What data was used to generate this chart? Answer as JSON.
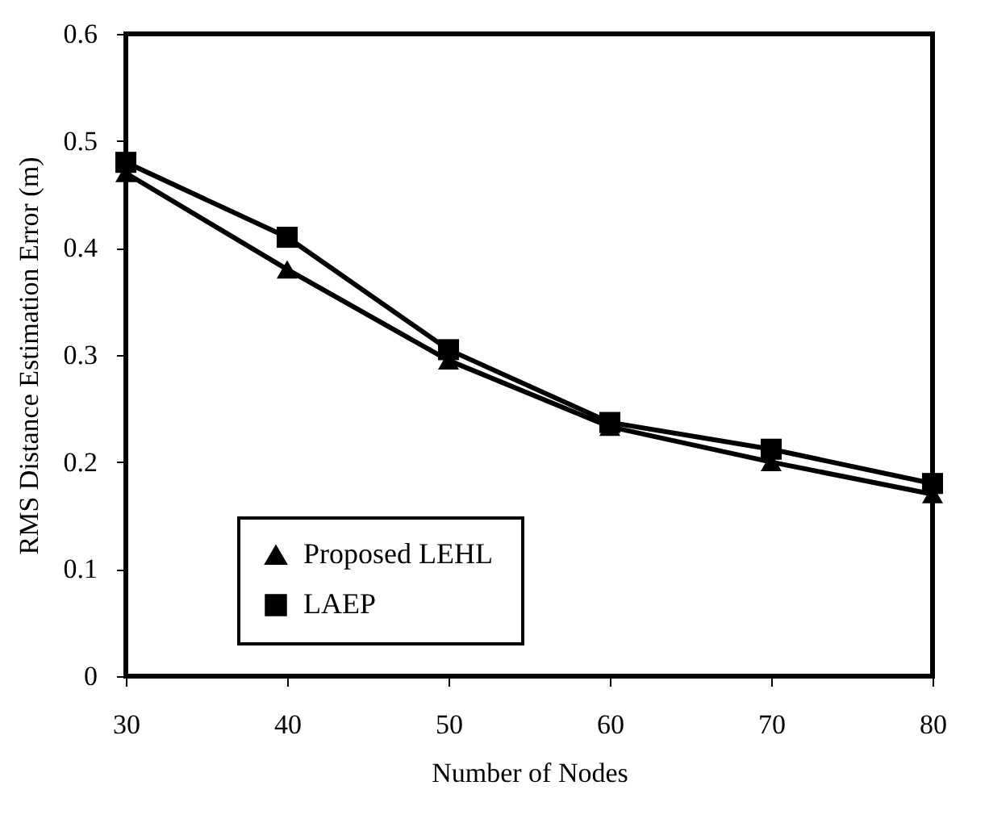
{
  "chart_data": {
    "type": "line",
    "xlabel": "Number of Nodes",
    "ylabel": "RMS Distance Estimation Error (m)",
    "x": [
      30,
      40,
      50,
      60,
      70,
      80
    ],
    "series": [
      {
        "name": "Proposed  LEHL",
        "color": "#000000",
        "marker": "triangle",
        "values": [
          0.47,
          0.38,
          0.295,
          0.233,
          0.2,
          0.17
        ]
      },
      {
        "name": "LAEP",
        "color": "#000000",
        "marker": "square",
        "values": [
          0.48,
          0.41,
          0.305,
          0.237,
          0.212,
          0.18
        ]
      }
    ],
    "xlim": [
      30,
      80
    ],
    "xticks": [
      30,
      40,
      50,
      60,
      70,
      80
    ],
    "ylim": [
      0,
      0.6
    ],
    "yticks": [
      0,
      0.1,
      0.2,
      0.3,
      0.4,
      0.5,
      0.6
    ],
    "grid": false,
    "legend": "bottom left",
    "line_style": "solid"
  }
}
